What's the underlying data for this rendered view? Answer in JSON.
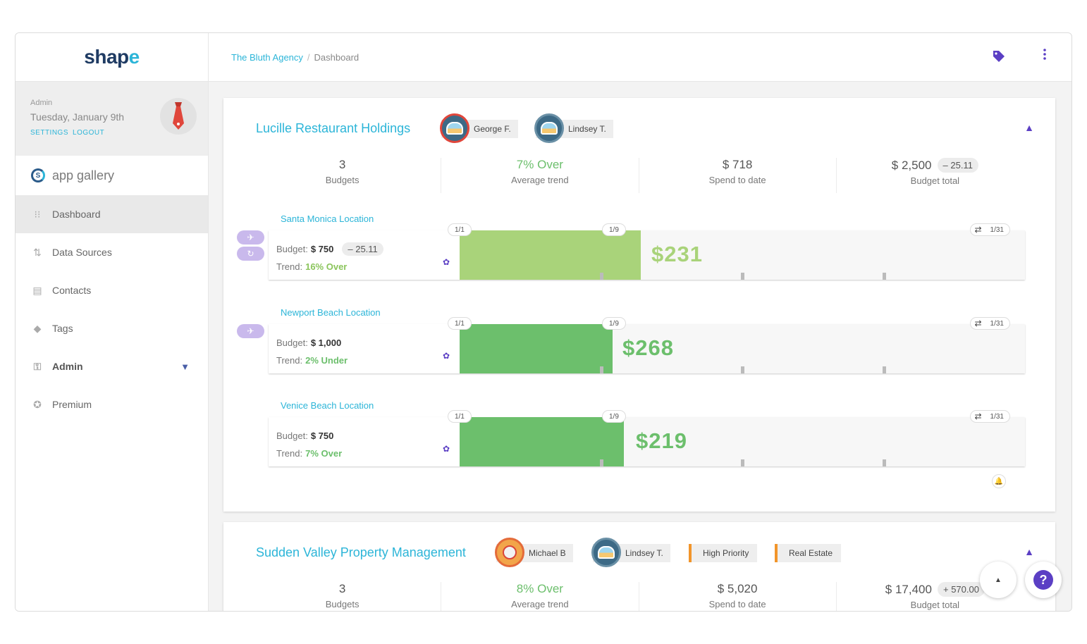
{
  "app": {
    "logo_main": "shap",
    "logo_accent": "e"
  },
  "user": {
    "role": "Admin",
    "date": "Tuesday, January 9th",
    "settings": "SETTINGS",
    "logout": "LOGOUT"
  },
  "gallery": {
    "label": "app gallery",
    "icon": "S"
  },
  "nav": [
    {
      "label": "Dashboard",
      "icon": "grid-icon"
    },
    {
      "label": "Data Sources",
      "icon": "arrows-icon"
    },
    {
      "label": "Contacts",
      "icon": "contacts-icon"
    },
    {
      "label": "Tags",
      "icon": "tag-icon"
    },
    {
      "label": "Admin",
      "icon": "key-icon"
    },
    {
      "label": "Premium",
      "icon": "star-icon"
    }
  ],
  "breadcrumb": {
    "client": "The Bluth Agency",
    "page": "Dashboard",
    "sep": "/"
  },
  "cards": [
    {
      "title": "Lucille Restaurant Holdings",
      "people": [
        "George F.",
        "Lindsey T."
      ],
      "stats": [
        {
          "value": "3",
          "label": "Budgets"
        },
        {
          "value": "7% Over",
          "label": "Average trend"
        },
        {
          "value": "$ 718",
          "label": "Spend to date"
        },
        {
          "value": "$ 2,500",
          "pill": "– 25.11",
          "label": "Budget total"
        }
      ],
      "locations": [
        {
          "title": "Santa Monica Location",
          "budget_label": "Budget:",
          "budget": "$ 750",
          "pill": "– 25.11",
          "trend_label": "Trend:",
          "trend": "16% Over",
          "amount_sym": "$",
          "amount": "231",
          "start": "1/1",
          "today": "1/9",
          "end": "1/31",
          "fill": 0.32
        },
        {
          "title": "Newport Beach Location",
          "budget_label": "Budget:",
          "budget": "$ 1,000",
          "trend_label": "Trend:",
          "trend": "2% Under",
          "amount_sym": "$",
          "amount": "268",
          "start": "1/1",
          "today": "1/9",
          "end": "1/31",
          "fill": 0.27
        },
        {
          "title": "Venice Beach Location",
          "budget_label": "Budget:",
          "budget": "$ 750",
          "trend_label": "Trend:",
          "trend": "7% Over",
          "amount_sym": "$",
          "amount": "219",
          "start": "1/1",
          "today": "1/9",
          "end": "1/31",
          "fill": 0.29
        }
      ]
    },
    {
      "title": "Sudden Valley Property Management",
      "people": [
        "Michael B",
        "Lindsey T."
      ],
      "tags": [
        "High Priority",
        "Real Estate"
      ],
      "stats": [
        {
          "value": "3",
          "label": "Budgets"
        },
        {
          "value": "8% Over",
          "label": "Average trend"
        },
        {
          "value": "$ 5,020",
          "label": "Spend to date"
        },
        {
          "value": "$ 17,400",
          "pill": "+ 570.00",
          "label": "Budget total"
        }
      ]
    }
  ],
  "colors": {
    "accent": "#2cb5d8",
    "brand": "#1f3b63",
    "purple": "#5b3fc4",
    "green": "#6cbf6c",
    "light_green": "#a9d37a",
    "tag_orange": "#f2952a"
  }
}
